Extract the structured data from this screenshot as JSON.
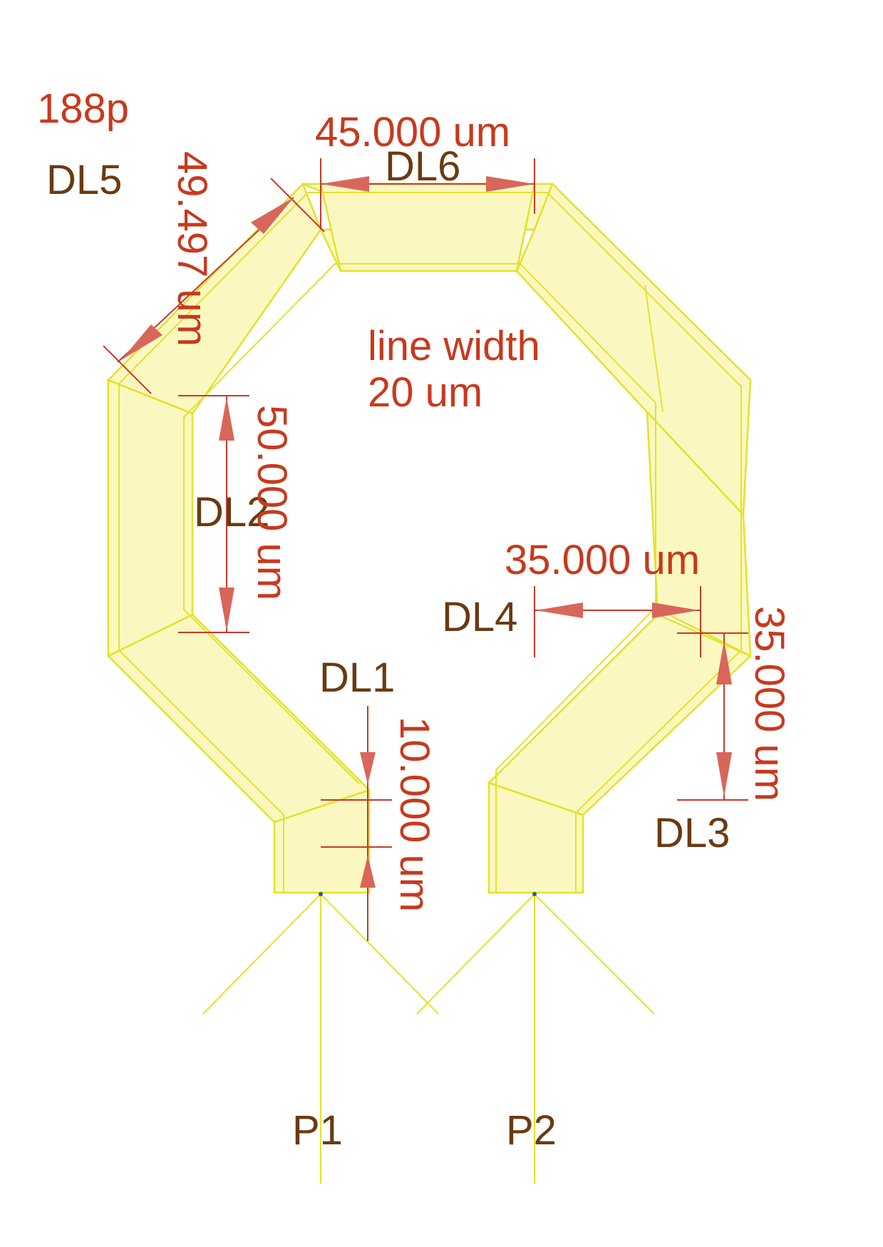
{
  "labels": {
    "count": "188p",
    "line_width_1": "line width",
    "line_width_2": "20 um",
    "dl1": "DL1",
    "dl2": "DL2",
    "dl3": "DL3",
    "dl4": "DL4",
    "dl5": "DL5",
    "dl6": "DL6",
    "p1": "P1",
    "p2": "P2"
  },
  "dimensions": {
    "top_width": "45.000 um",
    "diagonal": "49.497 um",
    "left_vertical": "50.000 um",
    "stub": "10.000 um",
    "horizontal_offset": "35.000 um",
    "right_vertical": "35.000 um"
  },
  "colors": {
    "trace_fill": "#faf8c0",
    "trace_stroke": "#e4e22a",
    "dimension": "#c8392b",
    "label_dark": "#6b3a12",
    "label_red": "#c8391d"
  }
}
